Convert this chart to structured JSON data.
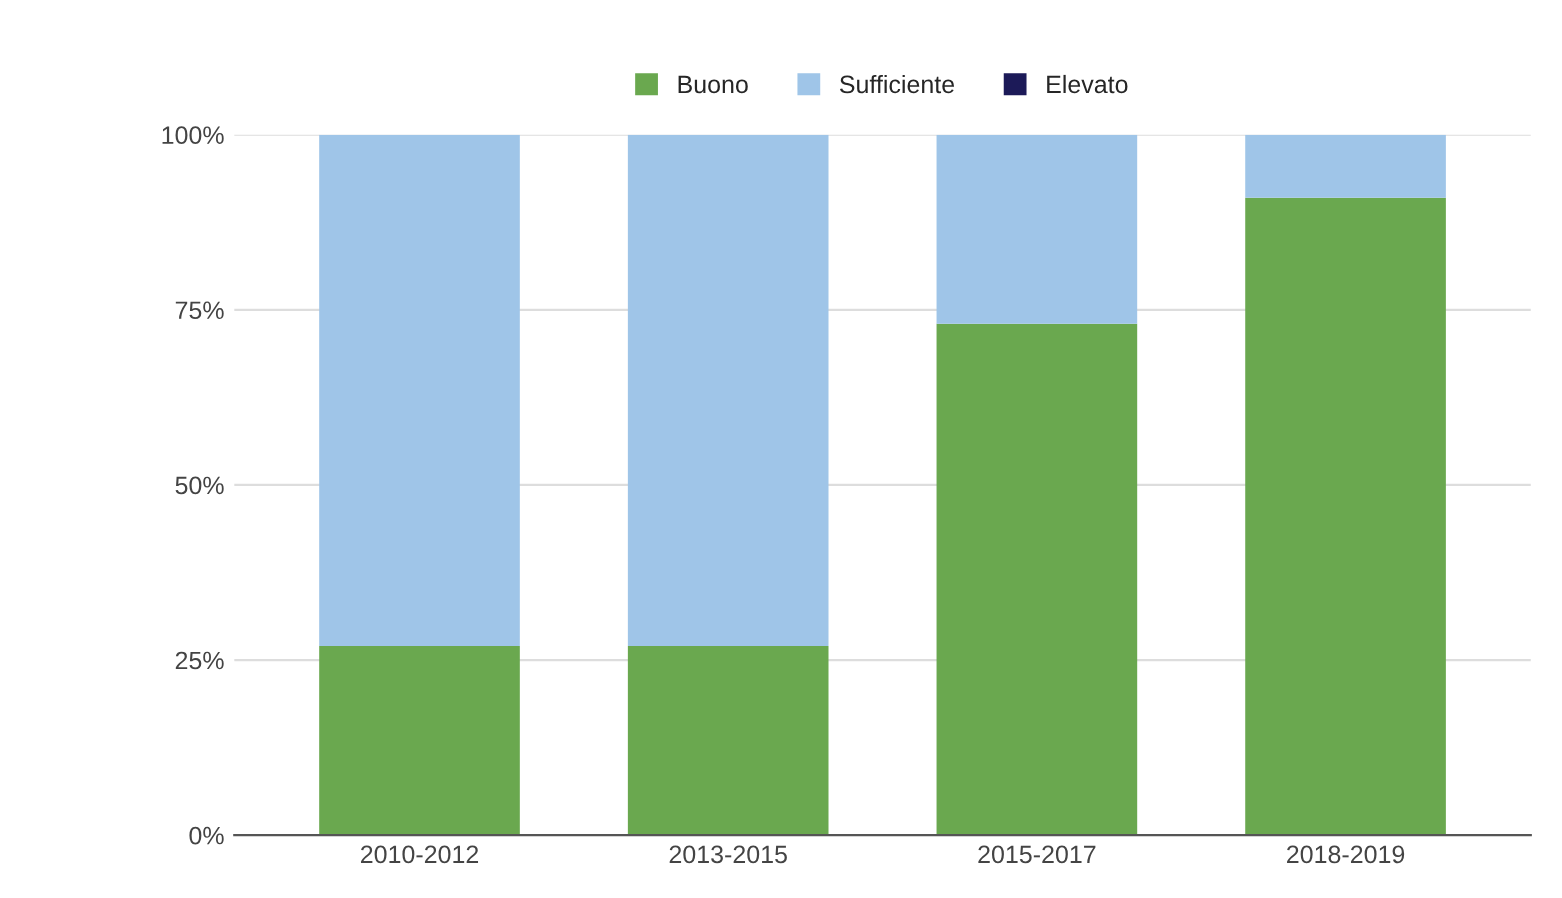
{
  "chart_data": {
    "type": "bar",
    "stacked": true,
    "categories": [
      "2010-2012",
      "2013-2015",
      "2015-2017",
      "2018-2019"
    ],
    "series": [
      {
        "name": "Buono",
        "color": "#6aa84f",
        "values": [
          27,
          27,
          73,
          91
        ]
      },
      {
        "name": "Sufficiente",
        "color": "#9fc5e8",
        "values": [
          73,
          73,
          27,
          9
        ]
      },
      {
        "name": "Elevato",
        "color": "#1c1a58",
        "values": [
          0,
          0,
          0,
          0
        ]
      }
    ],
    "ylim": [
      0,
      100
    ],
    "yticks": [
      {
        "value": 0,
        "label": "0%"
      },
      {
        "value": 25,
        "label": "25%"
      },
      {
        "value": 50,
        "label": "50%"
      },
      {
        "value": 75,
        "label": "75%"
      },
      {
        "value": 100,
        "label": "100%"
      }
    ],
    "grid": "y",
    "legend": "top"
  }
}
